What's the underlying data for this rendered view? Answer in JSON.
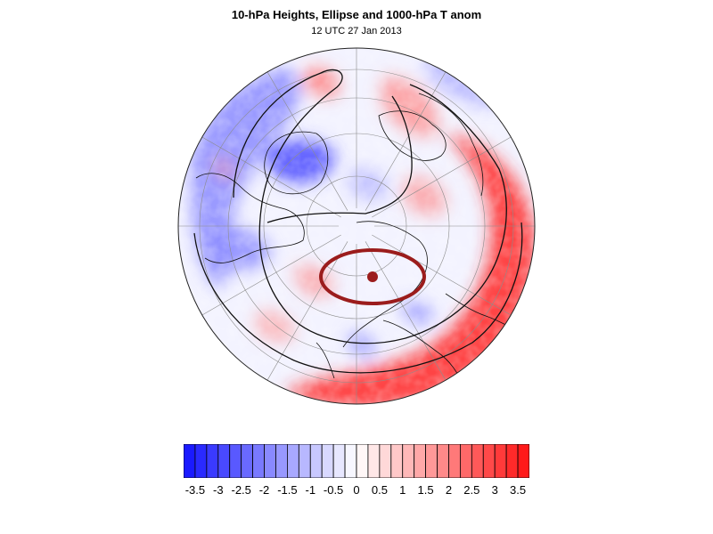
{
  "header": {
    "title": "10-hPa Heights, Ellipse and 1000-hPa T anom",
    "subtitle": "12 UTC 27 Jan 2013"
  },
  "colors": {
    "negative_max": "#1a1aff",
    "neutral": "#ffffff",
    "positive_max": "#ff1a1a",
    "ellipse": "#9b1c1c",
    "contour": "#111111",
    "coast": "#111111",
    "graticule": "#8c8c8c"
  },
  "colorbar": {
    "min": -3.75,
    "max": 3.75,
    "step": 0.25,
    "tick_labels": [
      "-3.5",
      "-3",
      "-2.5",
      "-2",
      "-1.5",
      "-1",
      "-0.5",
      "0",
      "0.5",
      "1",
      "1.5",
      "2",
      "2.5",
      "3",
      "3.5"
    ]
  },
  "map": {
    "projection": "polar orthographic (north pole)",
    "field": "1000-hPa temperature anomaly",
    "overlay": "10-hPa geopotential height contours",
    "feature": "polar vortex ellipse with centroid marker"
  }
}
